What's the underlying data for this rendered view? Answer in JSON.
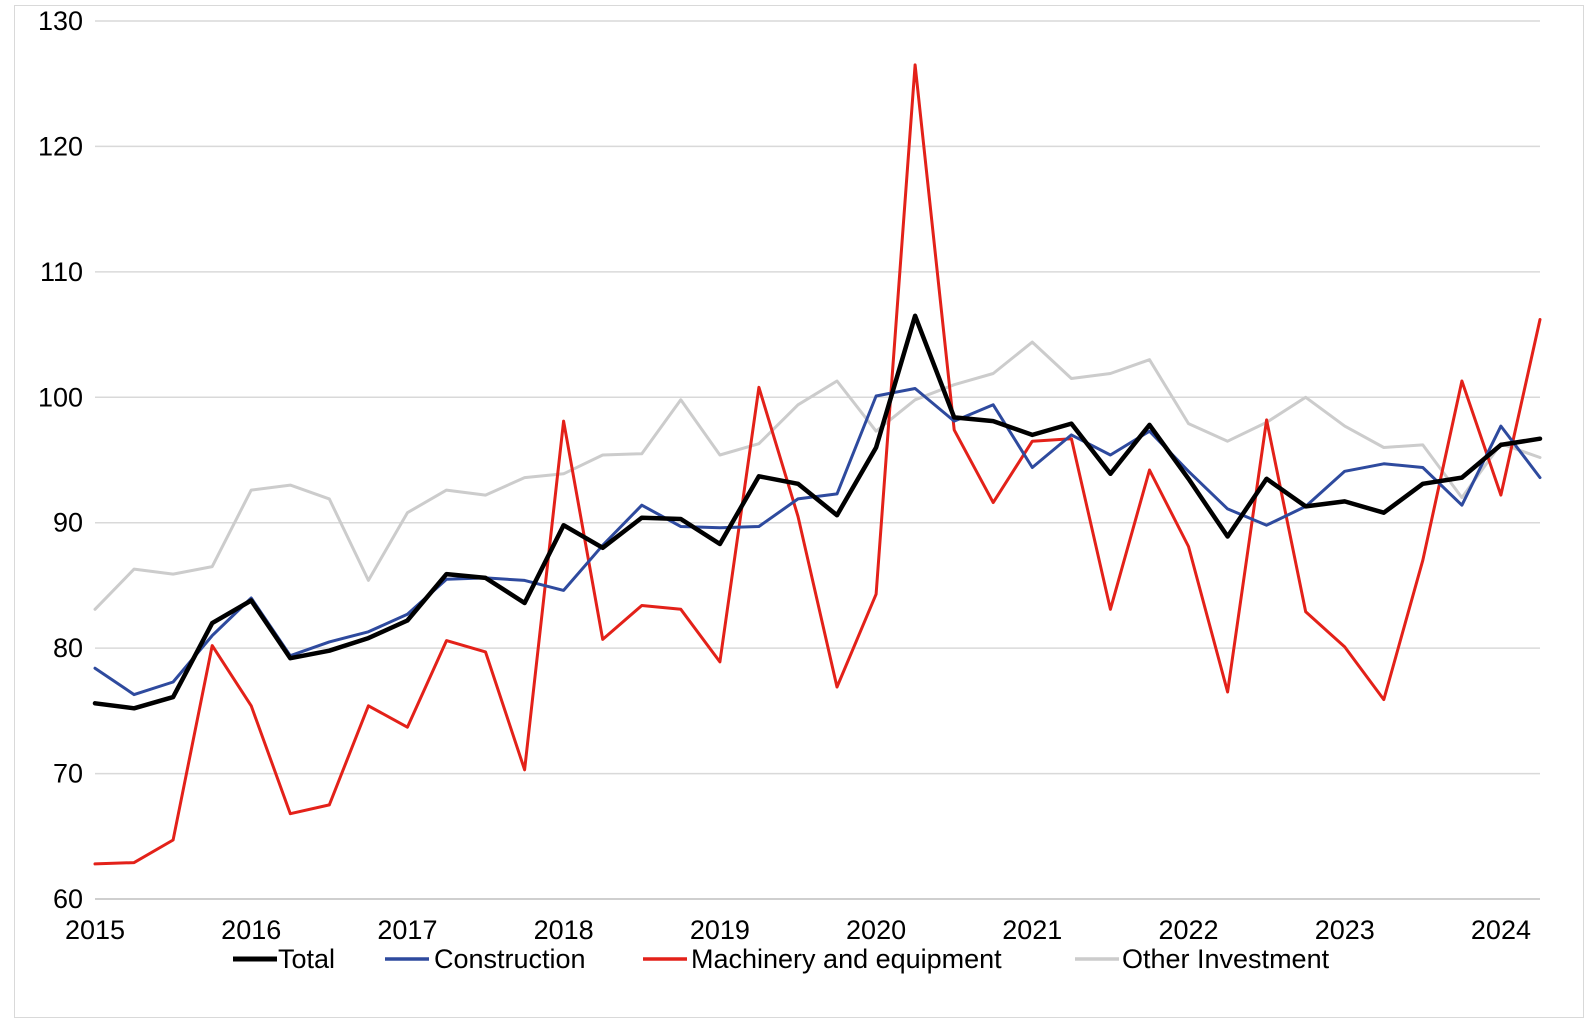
{
  "chart_data": {
    "type": "line",
    "title": "",
    "xlabel": "",
    "ylabel": "",
    "ylim": [
      60,
      130
    ],
    "yticks": [
      60,
      70,
      80,
      90,
      100,
      110,
      120,
      130
    ],
    "xtick_labels": [
      "2015",
      "2016",
      "2017",
      "2018",
      "2019",
      "2020",
      "2021",
      "2022",
      "2023",
      "2024"
    ],
    "x": [
      "2015Q1",
      "2015Q2",
      "2015Q3",
      "2015Q4",
      "2016Q1",
      "2016Q2",
      "2016Q3",
      "2016Q4",
      "2017Q1",
      "2017Q2",
      "2017Q3",
      "2017Q4",
      "2018Q1",
      "2018Q2",
      "2018Q3",
      "2018Q4",
      "2019Q1",
      "2019Q2",
      "2019Q3",
      "2019Q4",
      "2020Q1",
      "2020Q2",
      "2020Q3",
      "2020Q4",
      "2021Q1",
      "2021Q2",
      "2021Q3",
      "2021Q4",
      "2022Q1",
      "2022Q2",
      "2022Q3",
      "2022Q4",
      "2023Q1",
      "2023Q2",
      "2023Q3",
      "2023Q4",
      "2024Q1",
      "2024Q2"
    ],
    "grid": true,
    "legend_position": "bottom",
    "series": [
      {
        "name": "Total",
        "color": "#000000",
        "values": [
          75.6,
          75.2,
          76.1,
          82.0,
          83.8,
          79.2,
          79.8,
          80.8,
          82.2,
          85.9,
          85.6,
          83.6,
          89.8,
          88.0,
          90.4,
          90.3,
          88.3,
          93.7,
          93.1,
          90.6,
          96.0,
          106.5,
          98.4,
          98.1,
          97.0,
          97.9,
          93.9,
          97.8,
          93.5,
          88.9,
          93.5,
          91.3,
          91.7,
          90.8,
          93.1,
          93.6,
          96.2,
          96.7
        ]
      },
      {
        "name": "Construction",
        "color": "#2e4a9e",
        "values": [
          78.4,
          76.3,
          77.3,
          81.0,
          84.0,
          79.4,
          80.5,
          81.3,
          82.7,
          85.5,
          85.6,
          85.4,
          84.6,
          88.2,
          91.4,
          89.7,
          89.6,
          89.7,
          91.9,
          92.3,
          100.1,
          100.7,
          98.1,
          99.4,
          94.4,
          97.0,
          95.4,
          97.3,
          94.1,
          91.1,
          89.8,
          91.3,
          94.1,
          94.7,
          94.4,
          91.4,
          97.7,
          93.6
        ]
      },
      {
        "name": "Machinery and equipment",
        "color": "#e32119",
        "values": [
          62.8,
          62.9,
          64.7,
          80.2,
          75.4,
          66.8,
          67.5,
          75.4,
          73.7,
          80.6,
          79.7,
          70.3,
          98.1,
          80.7,
          83.4,
          83.1,
          78.9,
          100.8,
          90.5,
          76.9,
          84.3,
          126.5,
          97.4,
          91.6,
          96.5,
          96.7,
          83.1,
          94.2,
          88.1,
          76.5,
          98.2,
          82.9,
          80.1,
          75.9,
          87.0,
          101.3,
          92.2,
          106.2
        ]
      },
      {
        "name": "Other Investment",
        "color": "#cccccc",
        "values": [
          83.1,
          86.3,
          85.9,
          86.5,
          92.6,
          93.0,
          91.9,
          85.4,
          90.8,
          92.6,
          92.2,
          93.6,
          93.9,
          95.4,
          95.5,
          99.8,
          95.4,
          96.3,
          99.4,
          101.3,
          97.3,
          99.8,
          101.0,
          101.9,
          104.4,
          101.5,
          101.9,
          103.0,
          97.9,
          96.5,
          98.0,
          100.0,
          97.7,
          96.0,
          96.2,
          92.0,
          96.3,
          95.2
        ]
      }
    ]
  }
}
